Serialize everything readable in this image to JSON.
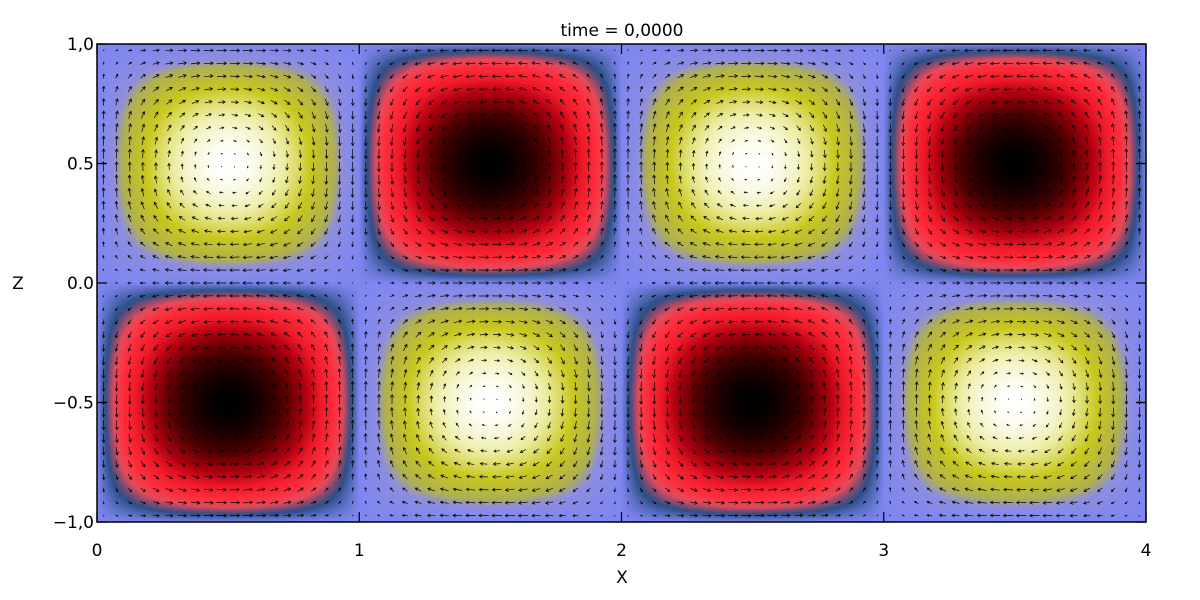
{
  "chart_data": {
    "type": "heatmap",
    "title": "time =   0,0000",
    "xlabel": "X",
    "ylabel": "Z",
    "xlim": [
      0,
      4
    ],
    "ylim": [
      -1,
      1
    ],
    "xticks": [
      0,
      1,
      2,
      3,
      4
    ],
    "xtick_labels": [
      "0",
      "1",
      "2",
      "3",
      "4"
    ],
    "yticks": [
      -1.0,
      -0.5,
      0.0,
      0.5,
      1.0
    ],
    "ytick_labels": [
      "−1,0",
      "−0.5",
      "0.0",
      "0.5",
      "1,0"
    ],
    "field": "sin(pi*X) * sin(pi*Z)",
    "field_range": [
      -1,
      1
    ],
    "colorscale": [
      {
        "value": -1.0,
        "color": "#000000"
      },
      {
        "value": -0.8,
        "color": "#4a0000"
      },
      {
        "value": -0.6,
        "color": "#b00010"
      },
      {
        "value": -0.45,
        "color": "#ee1a2a"
      },
      {
        "value": -0.3,
        "color": "#ff2d3c"
      },
      {
        "value": -0.2,
        "color": "#e84a5a"
      },
      {
        "value": -0.1,
        "color": "#2b4f86"
      },
      {
        "value": 0.0,
        "color": "#7f86f0"
      },
      {
        "value": 0.2,
        "color": "#8e8ee0"
      },
      {
        "value": 0.3,
        "color": "#b0b050"
      },
      {
        "value": 0.55,
        "color": "#c8c81e"
      },
      {
        "value": 0.8,
        "color": "#eeeea8"
      },
      {
        "value": 1.0,
        "color": "#ffffff"
      }
    ],
    "vector_field": "(-cos(pi*Z)*sin(pi*X), sin(pi*Z)*cos(pi*X))",
    "vector_color": "#000000",
    "grid": false
  }
}
